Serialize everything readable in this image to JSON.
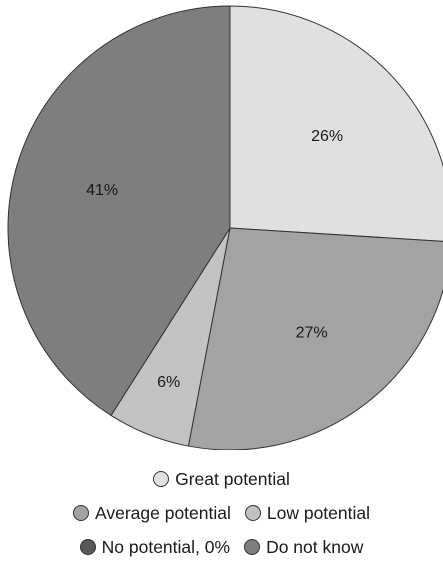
{
  "chart_data": {
    "type": "pie",
    "title": "",
    "slices": [
      {
        "label": "Great potential",
        "value": 26,
        "value_label": "26%",
        "color": "#e0e0e0"
      },
      {
        "label": "Average potential",
        "value": 27,
        "value_label": "27%",
        "color": "#a3a3a3"
      },
      {
        "label": "Low potential",
        "value": 6,
        "value_label": "6%",
        "color": "#c2c2c2"
      },
      {
        "label": "No potential, 0%",
        "value": 0,
        "value_label": "",
        "color": "#585858"
      },
      {
        "label": "Do not know",
        "value": 41,
        "value_label": "41%",
        "color": "#7e7e7e"
      }
    ],
    "start_angle": "12 o'clock",
    "direction": "clockwise",
    "legend_placement": "bottom"
  }
}
